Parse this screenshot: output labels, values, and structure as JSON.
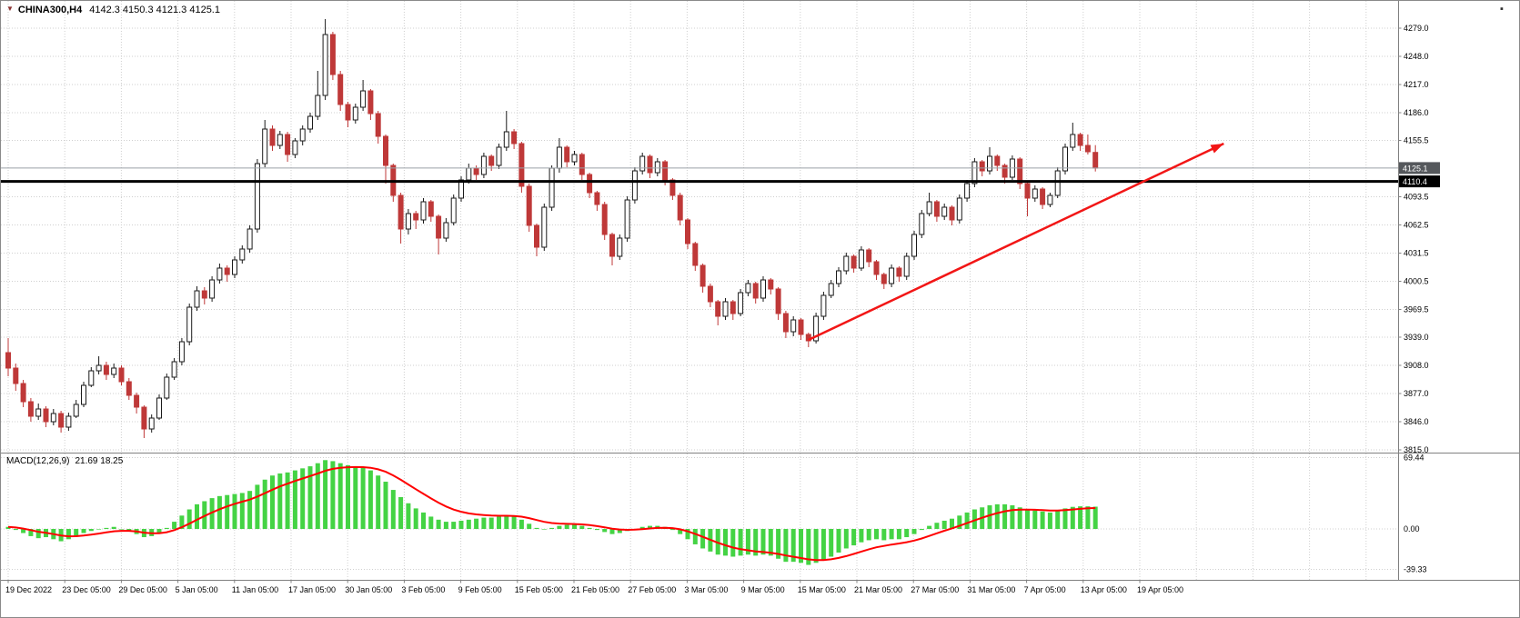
{
  "header": {
    "symbol": "CHINA300,H4",
    "ohlc_values": "4142.3 4150.3 4121.3 4125.1"
  },
  "indicator_label": {
    "name": "MACD(12,26,9)",
    "values": "21.69 18.25"
  },
  "icons": {
    "symbol_dropdown": "▼",
    "window_controls": "▪"
  },
  "colors": {
    "background": "#ffffff",
    "grid": "#cfcfcf",
    "separator": "#808080",
    "axis_text": "#000000",
    "up_fill": "#ffffff",
    "up_stroke": "#1a1a1a",
    "down_fill": "#bf3838",
    "macd_histogram": "#44d344",
    "macd_signal": "#ff0000",
    "bid_line": "#9aa0a6",
    "bid_tag_bg": "#55585c",
    "hline": "#000000",
    "hline_tag_bg": "#000000",
    "trend_arrow": "#f21616"
  },
  "chart_data": {
    "type": "candlestick",
    "symbol": "CHINA300",
    "timeframe": "H4",
    "last_ohlc": {
      "open": 4142.3,
      "high": 4150.3,
      "low": 4121.3,
      "close": 4125.1
    },
    "price_levels": {
      "bid": 4125.1,
      "horizontal_line": 4110.4
    },
    "price_ticks": [
      4279.0,
      4248.0,
      4217.0,
      4186.0,
      4155.5,
      4093.5,
      4062.5,
      4031.5,
      4000.5,
      3969.5,
      3939.0,
      3908.0,
      3877.0,
      3846.0,
      3815.0
    ],
    "time_labels": [
      "19 Dec 2022",
      "23 Dec 05:00",
      "29 Dec 05:00",
      "5 Jan 05:00",
      "11 Jan 05:00",
      "17 Jan 05:00",
      "30 Jan 05:00",
      "3 Feb 05:00",
      "9 Feb 05:00",
      "15 Feb 05:00",
      "21 Feb 05:00",
      "27 Feb 05:00",
      "3 Mar 05:00",
      "9 Mar 05:00",
      "15 Mar 05:00",
      "21 Mar 05:00",
      "27 Mar 05:00",
      "31 Mar 05:00",
      "7 Apr 05:00",
      "13 Apr 05:00",
      "19 Apr 05:00"
    ],
    "ylim_price": [
      3812,
      4309
    ],
    "candles": [
      [
        3922,
        3938,
        3896,
        3905
      ],
      [
        3905,
        3910,
        3880,
        3888
      ],
      [
        3888,
        3892,
        3862,
        3868
      ],
      [
        3868,
        3872,
        3846,
        3852
      ],
      [
        3852,
        3866,
        3848,
        3860
      ],
      [
        3860,
        3863,
        3840,
        3846
      ],
      [
        3846,
        3860,
        3842,
        3855
      ],
      [
        3855,
        3858,
        3834,
        3840
      ],
      [
        3840,
        3856,
        3836,
        3852
      ],
      [
        3852,
        3870,
        3850,
        3865
      ],
      [
        3865,
        3890,
        3862,
        3886
      ],
      [
        3886,
        3906,
        3884,
        3902
      ],
      [
        3902,
        3918,
        3898,
        3908
      ],
      [
        3908,
        3912,
        3892,
        3898
      ],
      [
        3898,
        3910,
        3894,
        3905
      ],
      [
        3905,
        3908,
        3886,
        3890
      ],
      [
        3890,
        3894,
        3870,
        3875
      ],
      [
        3875,
        3878,
        3855,
        3862
      ],
      [
        3862,
        3864,
        3828,
        3838
      ],
      [
        3838,
        3854,
        3834,
        3850
      ],
      [
        3850,
        3876,
        3848,
        3872
      ],
      [
        3872,
        3899,
        3870,
        3895
      ],
      [
        3895,
        3916,
        3892,
        3912
      ],
      [
        3912,
        3938,
        3908,
        3934
      ],
      [
        3934,
        3976,
        3930,
        3972
      ],
      [
        3972,
        3995,
        3968,
        3990
      ],
      [
        3990,
        3994,
        3975,
        3982
      ],
      [
        3982,
        4006,
        3978,
        4002
      ],
      [
        4002,
        4020,
        3998,
        4015
      ],
      [
        4015,
        4018,
        4000,
        4008
      ],
      [
        4008,
        4028,
        4004,
        4024
      ],
      [
        4024,
        4040,
        4020,
        4036
      ],
      [
        4036,
        4062,
        4032,
        4058
      ],
      [
        4058,
        4135,
        4054,
        4130
      ],
      [
        4130,
        4178,
        4126,
        4168
      ],
      [
        4168,
        4172,
        4144,
        4150
      ],
      [
        4150,
        4166,
        4146,
        4162
      ],
      [
        4162,
        4165,
        4132,
        4140
      ],
      [
        4140,
        4158,
        4136,
        4155
      ],
      [
        4155,
        4172,
        4150,
        4168
      ],
      [
        4168,
        4186,
        4164,
        4182
      ],
      [
        4182,
        4232,
        4178,
        4205
      ],
      [
        4205,
        4289,
        4200,
        4272
      ],
      [
        4272,
        4275,
        4222,
        4228
      ],
      [
        4228,
        4232,
        4188,
        4195
      ],
      [
        4195,
        4198,
        4170,
        4178
      ],
      [
        4178,
        4196,
        4174,
        4192
      ],
      [
        4192,
        4222,
        4188,
        4210
      ],
      [
        4210,
        4212,
        4178,
        4185
      ],
      [
        4185,
        4188,
        4152,
        4160
      ],
      [
        4160,
        4162,
        4108,
        4128
      ],
      [
        4128,
        4130,
        4088,
        4095
      ],
      [
        4095,
        4098,
        4042,
        4058
      ],
      [
        4058,
        4080,
        4052,
        4075
      ],
      [
        4075,
        4078,
        4058,
        4068
      ],
      [
        4068,
        4092,
        4064,
        4088
      ],
      [
        4088,
        4090,
        4066,
        4072
      ],
      [
        4072,
        4074,
        4030,
        4048
      ],
      [
        4048,
        4070,
        4044,
        4065
      ],
      [
        4065,
        4096,
        4062,
        4092
      ],
      [
        4092,
        4116,
        4088,
        4112
      ],
      [
        4112,
        4130,
        4108,
        4125
      ],
      [
        4125,
        4128,
        4112,
        4118
      ],
      [
        4118,
        4142,
        4114,
        4138
      ],
      [
        4138,
        4140,
        4122,
        4128
      ],
      [
        4128,
        4152,
        4124,
        4148
      ],
      [
        4148,
        4188,
        4144,
        4165
      ],
      [
        4165,
        4168,
        4146,
        4152
      ],
      [
        4152,
        4154,
        4098,
        4105
      ],
      [
        4105,
        4108,
        4055,
        4062
      ],
      [
        4062,
        4064,
        4028,
        4038
      ],
      [
        4038,
        4086,
        4034,
        4082
      ],
      [
        4082,
        4128,
        4078,
        4125
      ],
      [
        4125,
        4158,
        4120,
        4148
      ],
      [
        4148,
        4150,
        4126,
        4132
      ],
      [
        4132,
        4144,
        4128,
        4140
      ],
      [
        4140,
        4142,
        4112,
        4118
      ],
      [
        4118,
        4120,
        4092,
        4098
      ],
      [
        4098,
        4100,
        4078,
        4085
      ],
      [
        4085,
        4088,
        4046,
        4052
      ],
      [
        4052,
        4054,
        4018,
        4028
      ],
      [
        4028,
        4052,
        4024,
        4048
      ],
      [
        4048,
        4094,
        4044,
        4090
      ],
      [
        4090,
        4126,
        4086,
        4122
      ],
      [
        4122,
        4142,
        4118,
        4138
      ],
      [
        4138,
        4140,
        4114,
        4120
      ],
      [
        4120,
        4136,
        4116,
        4132
      ],
      [
        4132,
        4134,
        4106,
        4112
      ],
      [
        4112,
        4114,
        4090,
        4095
      ],
      [
        4095,
        4098,
        4062,
        4068
      ],
      [
        4068,
        4070,
        4036,
        4042
      ],
      [
        4042,
        4044,
        4012,
        4018
      ],
      [
        4018,
        4020,
        3988,
        3995
      ],
      [
        3995,
        3998,
        3972,
        3978
      ],
      [
        3978,
        3980,
        3952,
        3962
      ],
      [
        3962,
        3982,
        3958,
        3978
      ],
      [
        3978,
        3980,
        3958,
        3965
      ],
      [
        3965,
        3992,
        3962,
        3988
      ],
      [
        3988,
        4002,
        3984,
        3998
      ],
      [
        3998,
        4000,
        3976,
        3982
      ],
      [
        3982,
        4006,
        3978,
        4002
      ],
      [
        4002,
        4004,
        3986,
        3992
      ],
      [
        3992,
        3994,
        3958,
        3965
      ],
      [
        3965,
        3968,
        3938,
        3945
      ],
      [
        3945,
        3962,
        3940,
        3958
      ],
      [
        3958,
        3960,
        3936,
        3942
      ],
      [
        3942,
        3944,
        3928,
        3935
      ],
      [
        3935,
        3966,
        3932,
        3962
      ],
      [
        3962,
        3989,
        3958,
        3985
      ],
      [
        3985,
        4002,
        3982,
        3998
      ],
      [
        3998,
        4016,
        3994,
        4012
      ],
      [
        4012,
        4032,
        4008,
        4028
      ],
      [
        4028,
        4030,
        4010,
        4015
      ],
      [
        4015,
        4039,
        4012,
        4035
      ],
      [
        4035,
        4037,
        4016,
        4022
      ],
      [
        4022,
        4024,
        4002,
        4008
      ],
      [
        4008,
        4010,
        3992,
        3998
      ],
      [
        3998,
        4019,
        3994,
        4015
      ],
      [
        4015,
        4017,
        4000,
        4006
      ],
      [
        4006,
        4032,
        4002,
        4028
      ],
      [
        4028,
        4056,
        4024,
        4052
      ],
      [
        4052,
        4079,
        4048,
        4075
      ],
      [
        4075,
        4098,
        4072,
        4088
      ],
      [
        4088,
        4090,
        4066,
        4072
      ],
      [
        4072,
        4086,
        4068,
        4082
      ],
      [
        4082,
        4084,
        4062,
        4068
      ],
      [
        4068,
        4096,
        4064,
        4092
      ],
      [
        4092,
        4112,
        4088,
        4108
      ],
      [
        4108,
        4136,
        4104,
        4132
      ],
      [
        4132,
        4134,
        4116,
        4122
      ],
      [
        4122,
        4148,
        4118,
        4138
      ],
      [
        4138,
        4140,
        4122,
        4128
      ],
      [
        4128,
        4130,
        4108,
        4115
      ],
      [
        4115,
        4139,
        4112,
        4135
      ],
      [
        4135,
        4137,
        4102,
        4108
      ],
      [
        4108,
        4110,
        4072,
        4092
      ],
      [
        4092,
        4106,
        4088,
        4102
      ],
      [
        4102,
        4104,
        4080,
        4085
      ],
      [
        4085,
        4098,
        4082,
        4095
      ],
      [
        4095,
        4126,
        4092,
        4122
      ],
      [
        4122,
        4152,
        4118,
        4148
      ],
      [
        4148,
        4175,
        4144,
        4162
      ],
      [
        4162,
        4164,
        4144,
        4150
      ],
      [
        4150,
        4162,
        4140,
        4143
      ],
      [
        4142.3,
        4150.3,
        4121.3,
        4125.1
      ]
    ],
    "indicator": {
      "name": "MACD",
      "params": [
        12,
        26,
        9
      ],
      "macd_current": 21.69,
      "signal_current": 18.25,
      "axis_ticks": [
        69.44,
        0,
        -39.33
      ],
      "signal_smoothing": 0.2,
      "histogram": [
        2,
        -1,
        -4,
        -7,
        -9,
        -8,
        -10,
        -12,
        -10,
        -7,
        -4,
        -2,
        0,
        1,
        2,
        0,
        -2,
        -5,
        -8,
        -7,
        -4,
        1,
        7,
        13,
        19,
        24,
        27,
        30,
        32,
        33,
        34,
        35,
        37,
        43,
        48,
        52,
        54,
        55,
        57,
        59,
        61,
        64,
        67,
        66,
        64,
        62,
        61,
        60,
        57,
        52,
        46,
        38,
        31,
        25,
        20,
        16,
        12,
        9,
        7,
        7,
        8,
        9,
        10,
        11,
        11,
        12,
        13,
        12,
        9,
        5,
        1,
        0,
        1,
        3,
        4,
        4,
        3,
        1,
        -1,
        -3,
        -5,
        -4,
        -2,
        0,
        2,
        3,
        3,
        2,
        -1,
        -5,
        -10,
        -15,
        -19,
        -22,
        -25,
        -26,
        -27,
        -26,
        -25,
        -26,
        -25,
        -26,
        -29,
        -32,
        -32,
        -33,
        -35,
        -33,
        -30,
        -27,
        -23,
        -19,
        -16,
        -13,
        -11,
        -10,
        -11,
        -10,
        -10,
        -8,
        -5,
        -1,
        3,
        6,
        8,
        10,
        13,
        16,
        19,
        21,
        23,
        24,
        24,
        23,
        21,
        19,
        18,
        17,
        16,
        18,
        20,
        21.5,
        22,
        22,
        21.69
      ]
    },
    "trend_arrow": {
      "start_index": 106,
      "start_price": 3936,
      "end_index": 161,
      "end_price": 4152
    }
  }
}
